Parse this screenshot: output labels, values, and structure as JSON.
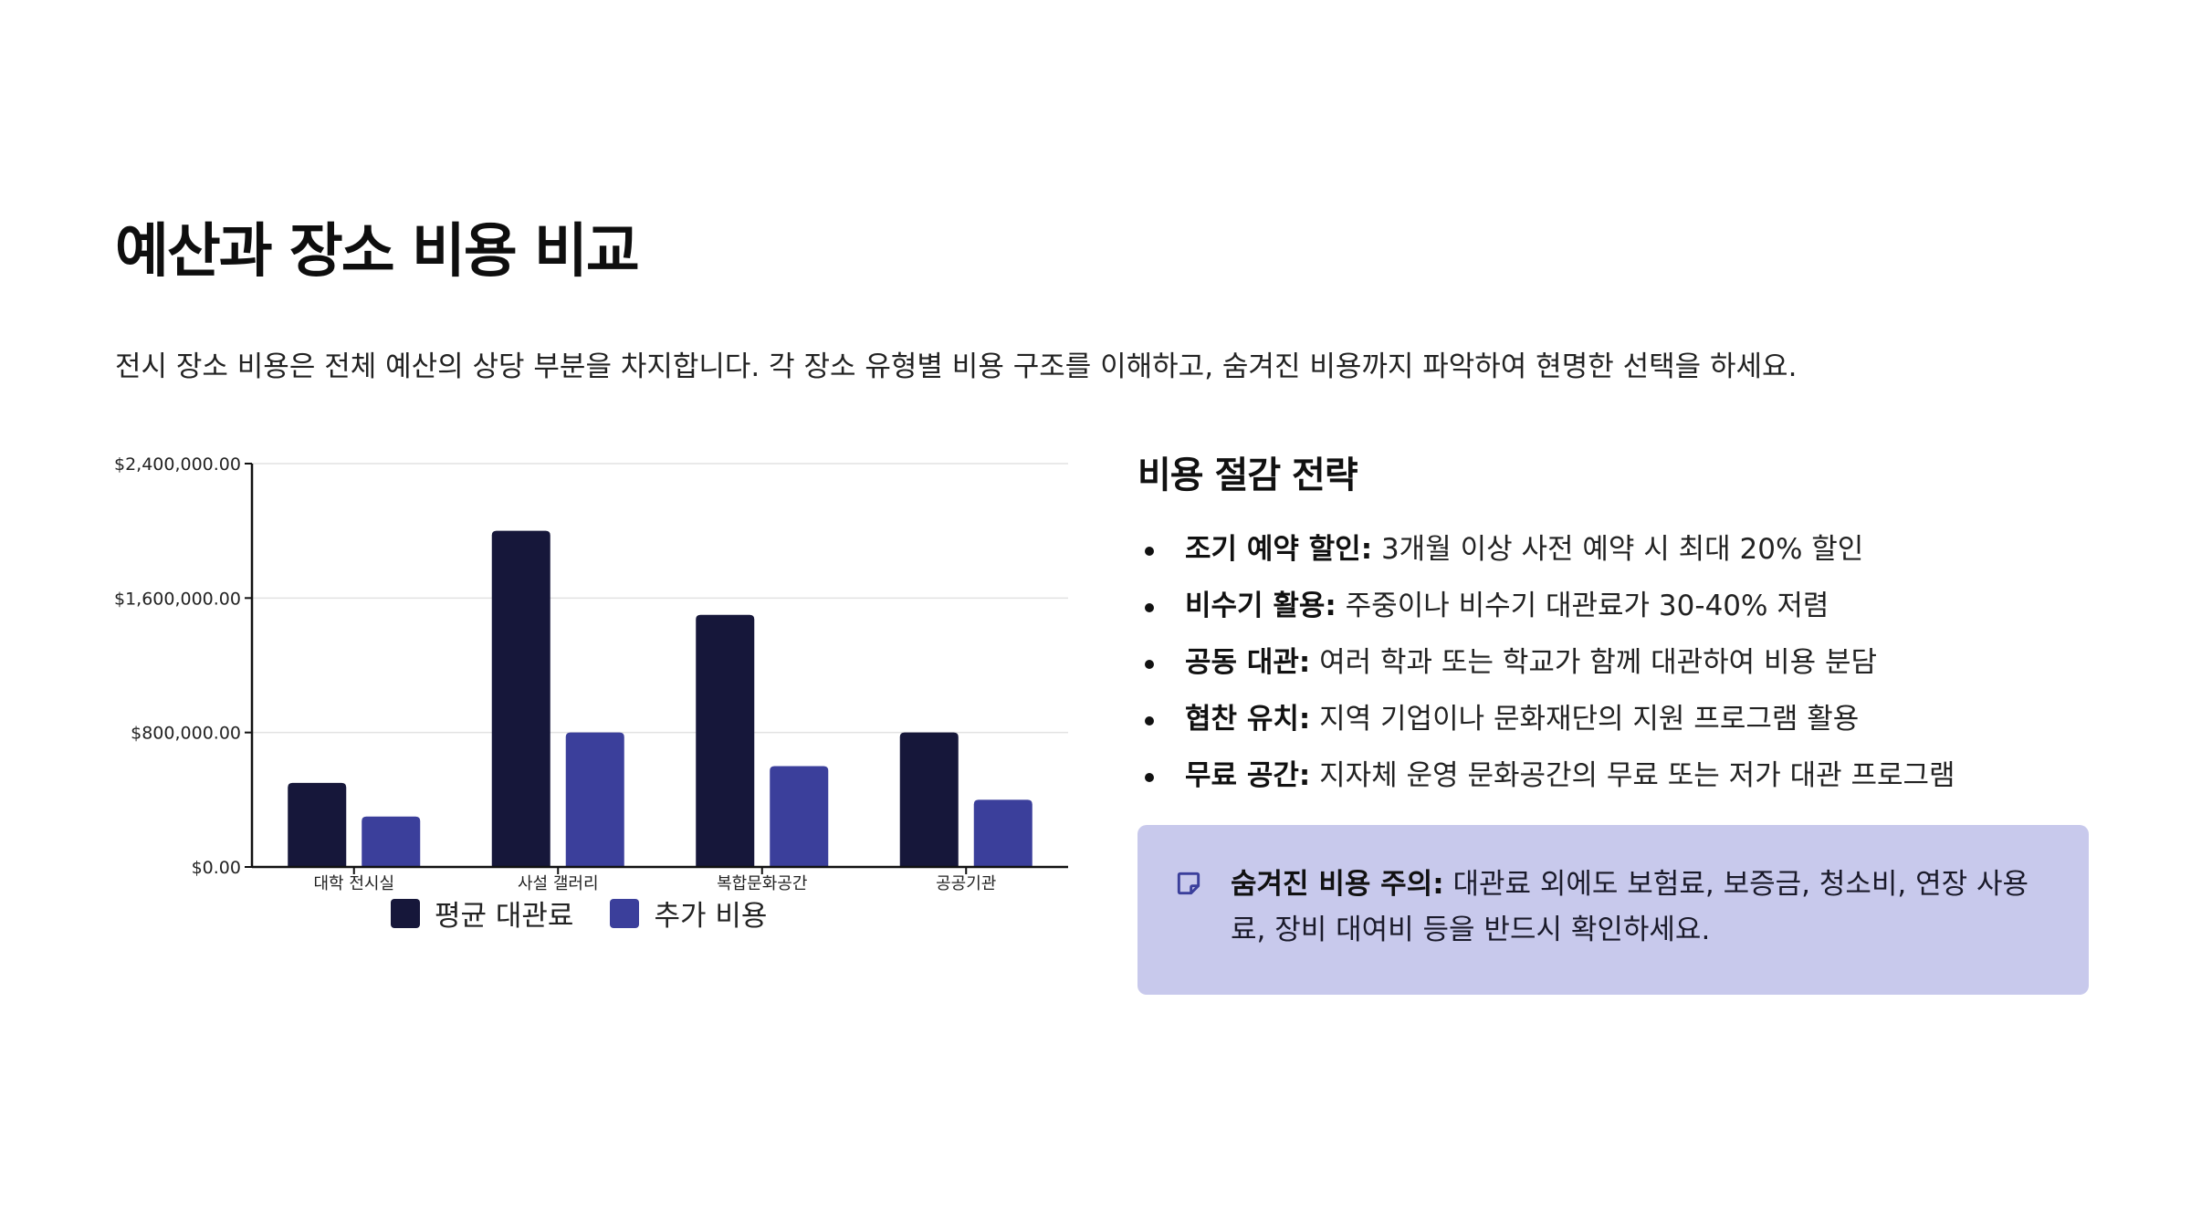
{
  "header": {
    "title": "예산과 장소 비용 비교",
    "subtitle": "전시 장소 비용은 전체 예산의 상당 부분을 차지합니다. 각 장소 유형별 비용 구조를 이해하고, 숨겨진 비용까지 파악하여 현명한 선택을 하세요."
  },
  "chart_data": {
    "type": "bar",
    "categories": [
      "대학 전시실",
      "사설 갤러리",
      "복합문화공간",
      "공공기관"
    ],
    "series": [
      {
        "name": "평균 대관료",
        "color": "#16173a",
        "values": [
          500000,
          2000000,
          1500000,
          800000
        ]
      },
      {
        "name": "추가 비용",
        "color": "#3b3f9b",
        "values": [
          300000,
          800000,
          600000,
          400000
        ]
      }
    ],
    "y_ticks": [
      "$0.00",
      "$800,000.00",
      "$1,600,000.00",
      "$2,400,000.00"
    ],
    "y_tick_values": [
      0,
      800000,
      1600000,
      2400000
    ],
    "ylim": [
      0,
      2400000
    ],
    "grid": true,
    "legend_position": "bottom",
    "xlabel": "",
    "ylabel": ""
  },
  "strategy": {
    "heading": "비용 절감 전략",
    "items": [
      {
        "label": "조기 예약 할인:",
        "text": " 3개월 이상 사전 예약 시 최대 20% 할인"
      },
      {
        "label": "비수기 활용:",
        "text": " 주중이나 비수기 대관료가 30-40% 저렴"
      },
      {
        "label": "공동 대관:",
        "text": " 여러 학과 또는 학교가 함께 대관하여 비용 분담"
      },
      {
        "label": "협찬 유치:",
        "text": " 지역 기업이나 문화재단의 지원 프로그램 활용"
      },
      {
        "label": "무료 공간:",
        "text": " 지자체 운영 문화공간의 무료 또는 저가 대관 프로그램"
      }
    ]
  },
  "note": {
    "icon": "sticky-note-icon",
    "label": "숨겨진 비용 주의:",
    "text": " 대관료 외에도 보험료, 보증금, 청소비, 연장 사용료, 장비 대여비 등을 반드시 확인하세요.",
    "background": "#c8c9ec"
  }
}
